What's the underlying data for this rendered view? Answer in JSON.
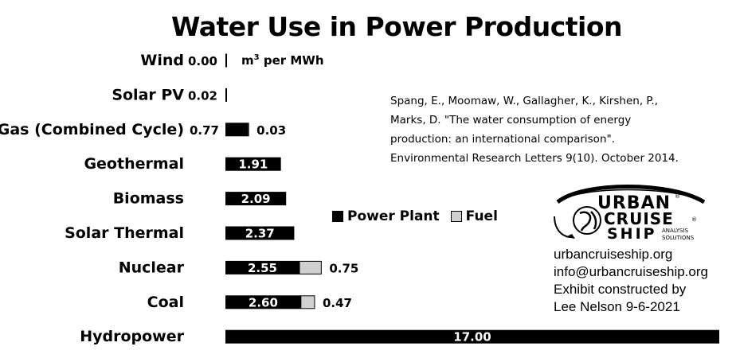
{
  "chart_data": {
    "type": "bar",
    "orientation": "horizontal",
    "stacked": true,
    "title": "Water Use in Power Production",
    "unit_label": "m³ per MWh",
    "categories": [
      "Wind",
      "Solar PV",
      "Gas (Combined Cycle)",
      "Geothermal",
      "Biomass",
      "Solar Thermal",
      "Nuclear",
      "Coal",
      "Hydropower"
    ],
    "series": [
      {
        "name": "Power Plant",
        "color": "#000000",
        "values": [
          0.0,
          0.02,
          0.77,
          1.91,
          2.09,
          2.37,
          2.55,
          2.6,
          17.0
        ]
      },
      {
        "name": "Fuel",
        "color": "#d0d0d0",
        "values": [
          null,
          null,
          0.03,
          null,
          null,
          null,
          0.75,
          0.47,
          null
        ]
      }
    ],
    "xlim": [
      0,
      17
    ],
    "grid": false,
    "legend_position": "right-middle"
  },
  "source": {
    "lines": [
      "Spang, E., Moomaw, W., Gallagher, K., Kirshen, P.,",
      "Marks, D. \"The water consumption of energy",
      "production: an international comparison\".",
      "Environmental Research Letters 9(10). October 2014."
    ]
  },
  "logo": {
    "top": "URBAN",
    "middle": "CRUISE",
    "bottom": "SHIP",
    "sub1": "ANALYSIS",
    "sub2": "SOLUTIONS"
  },
  "contact": {
    "website": "urbancruiseship.org",
    "email": "info@urbancruiseship.org",
    "credit1": "Exhibit constructed by",
    "credit2": "Lee Nelson 9-6-2021"
  }
}
